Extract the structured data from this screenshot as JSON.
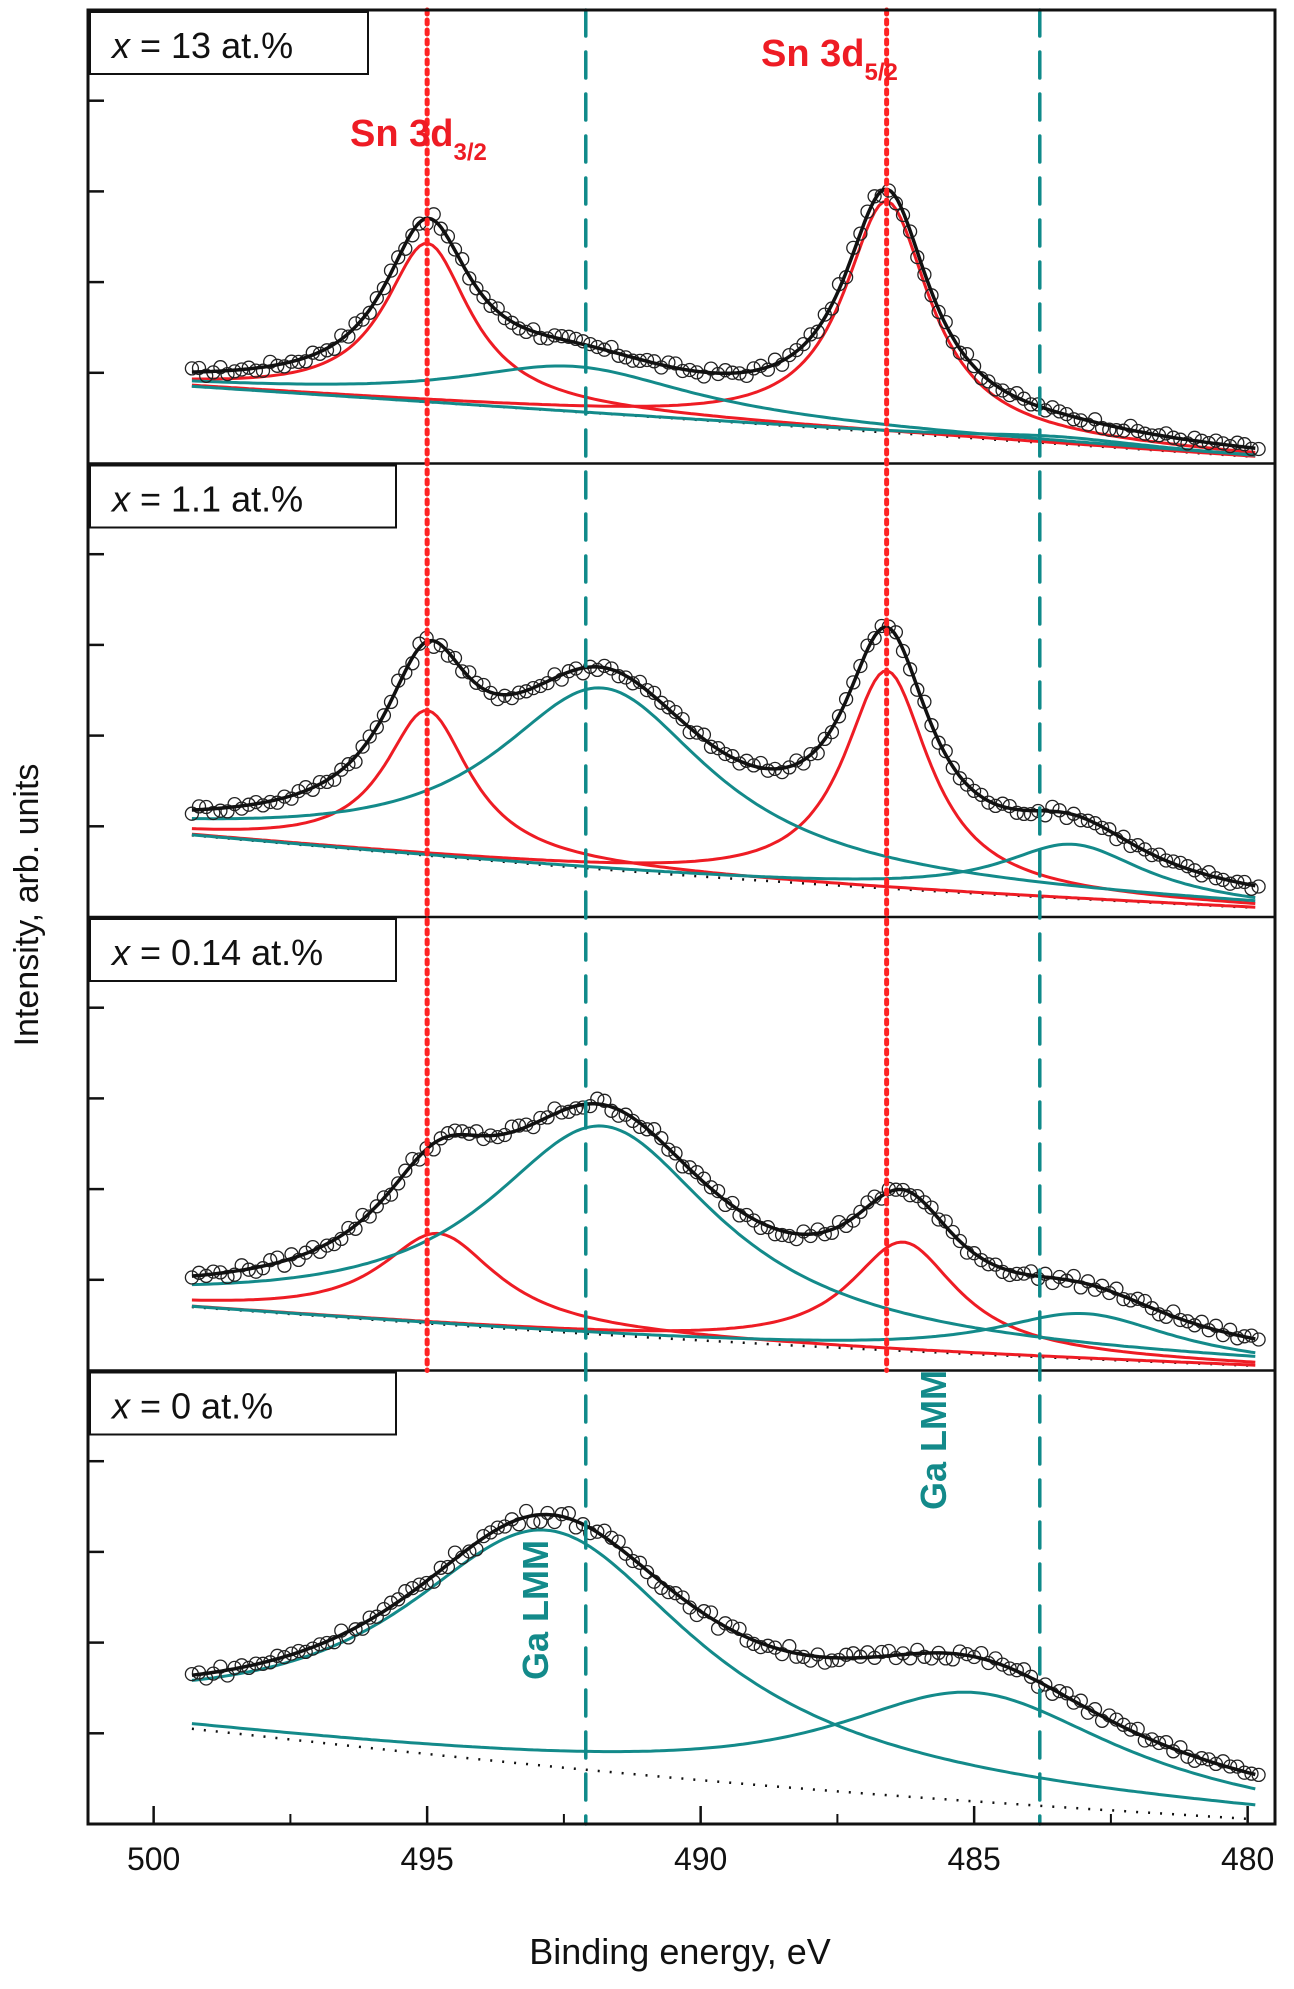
{
  "chart_data": {
    "type": "line",
    "xlabel": "Binding energy, eV",
    "ylabel": "Intensity, arb. units",
    "xlim": [
      501.2,
      479.5
    ],
    "xticks": [
      500,
      495,
      490,
      485,
      480
    ],
    "xtick_labels": [
      "500",
      "495",
      "490",
      "485",
      "480"
    ],
    "yticks": [
      1,
      2,
      3,
      4
    ],
    "ylim": [
      0,
      5
    ],
    "reference_lines": [
      {
        "name": "Sn 3d3/2",
        "x": 495.0,
        "style": "dotted",
        "color": "#ff2222",
        "panels": [
          0,
          1,
          2
        ]
      },
      {
        "name": "Sn 3d5/2",
        "x": 486.6,
        "style": "dotted",
        "color": "#ff2222",
        "panels": [
          0,
          1,
          2
        ]
      },
      {
        "name": "Ga LMM",
        "x": 492.1,
        "style": "dashed",
        "color": "#0f8a8a",
        "panels": [
          0,
          1,
          2,
          3
        ]
      },
      {
        "name": "Ga LMM",
        "x": 483.8,
        "style": "dashed",
        "color": "#0f8a8a",
        "panels": [
          0,
          1,
          2,
          3
        ]
      }
    ],
    "annotations": {
      "sn32": {
        "main": "Sn 3d",
        "sub": "3/2"
      },
      "sn52": {
        "main": "Sn 3d",
        "sub": "5/2"
      },
      "ga1": "Ga LMM",
      "ga2": "Ga LMM"
    },
    "colors": {
      "fit": "#111111",
      "sn": "#ee1c24",
      "ga": "#138a8a",
      "background": "#111111",
      "points": "#222222"
    },
    "panels": [
      {
        "label": {
          "var": "x",
          "rest": " = 13 at.%"
        },
        "background": {
          "start": 0.85,
          "end": 0.07,
          "shape": 0.0
        },
        "points_noise": 0.045,
        "peaks": [
          {
            "name": "Sn 3d3/2",
            "type": "Sn",
            "center": 495.0,
            "height": 1.75,
            "width": 0.95
          },
          {
            "name": "Sn 3d5/2",
            "type": "Sn",
            "center": 486.6,
            "height": 2.55,
            "width": 0.95
          },
          {
            "name": "Ga LMM",
            "type": "Ga",
            "center": 492.3,
            "height": 0.5,
            "width": 2.6
          },
          {
            "name": "Ga LMM",
            "type": "Ga",
            "center": 483.5,
            "height": 0.08,
            "width": 2.0
          }
        ]
      },
      {
        "label": {
          "var": "x",
          "rest": " = 1.1 at.%"
        },
        "background": {
          "start": 0.9,
          "end": 0.1,
          "shape": 0.5
        },
        "points_noise": 0.045,
        "peaks": [
          {
            "name": "Sn 3d3/2",
            "type": "Sn",
            "center": 495.0,
            "height": 1.6,
            "width": 0.95
          },
          {
            "name": "Sn 3d5/2",
            "type": "Sn",
            "center": 486.6,
            "height": 2.4,
            "width": 0.95
          },
          {
            "name": "Ga LMM",
            "type": "Ga",
            "center": 491.8,
            "height": 2.0,
            "width": 2.4
          },
          {
            "name": "Ga LMM",
            "type": "Ga",
            "center": 483.2,
            "height": 0.6,
            "width": 1.6
          }
        ]
      },
      {
        "label": {
          "var": "x",
          "rest": " = 0.14 at.%"
        },
        "background": {
          "start": 0.7,
          "end": 0.05,
          "shape": 0.5
        },
        "points_noise": 0.05,
        "peaks": [
          {
            "name": "Sn 3d3/2",
            "type": "Sn",
            "center": 494.8,
            "height": 1.0,
            "width": 1.3
          },
          {
            "name": "Sn 3d5/2",
            "type": "Sn",
            "center": 486.3,
            "height": 1.2,
            "width": 1.2
          },
          {
            "name": "Ga LMM",
            "type": "Ga",
            "center": 491.8,
            "height": 2.3,
            "width": 2.6
          },
          {
            "name": "Ga LMM",
            "type": "Ga",
            "center": 483.0,
            "height": 0.5,
            "width": 2.0
          }
        ]
      },
      {
        "label": {
          "var": "x",
          "rest": " = 0 at.%"
        },
        "background": {
          "start": 1.05,
          "end": 0.05,
          "shape": 0.5
        },
        "points_noise": 0.05,
        "peaks": [
          {
            "name": "Ga LMM",
            "type": "Ga",
            "center": 492.8,
            "height": 2.6,
            "width": 3.3
          },
          {
            "name": "Ga LMM",
            "type": "Ga",
            "center": 485.0,
            "height": 1.2,
            "width": 3.2
          }
        ]
      }
    ]
  }
}
